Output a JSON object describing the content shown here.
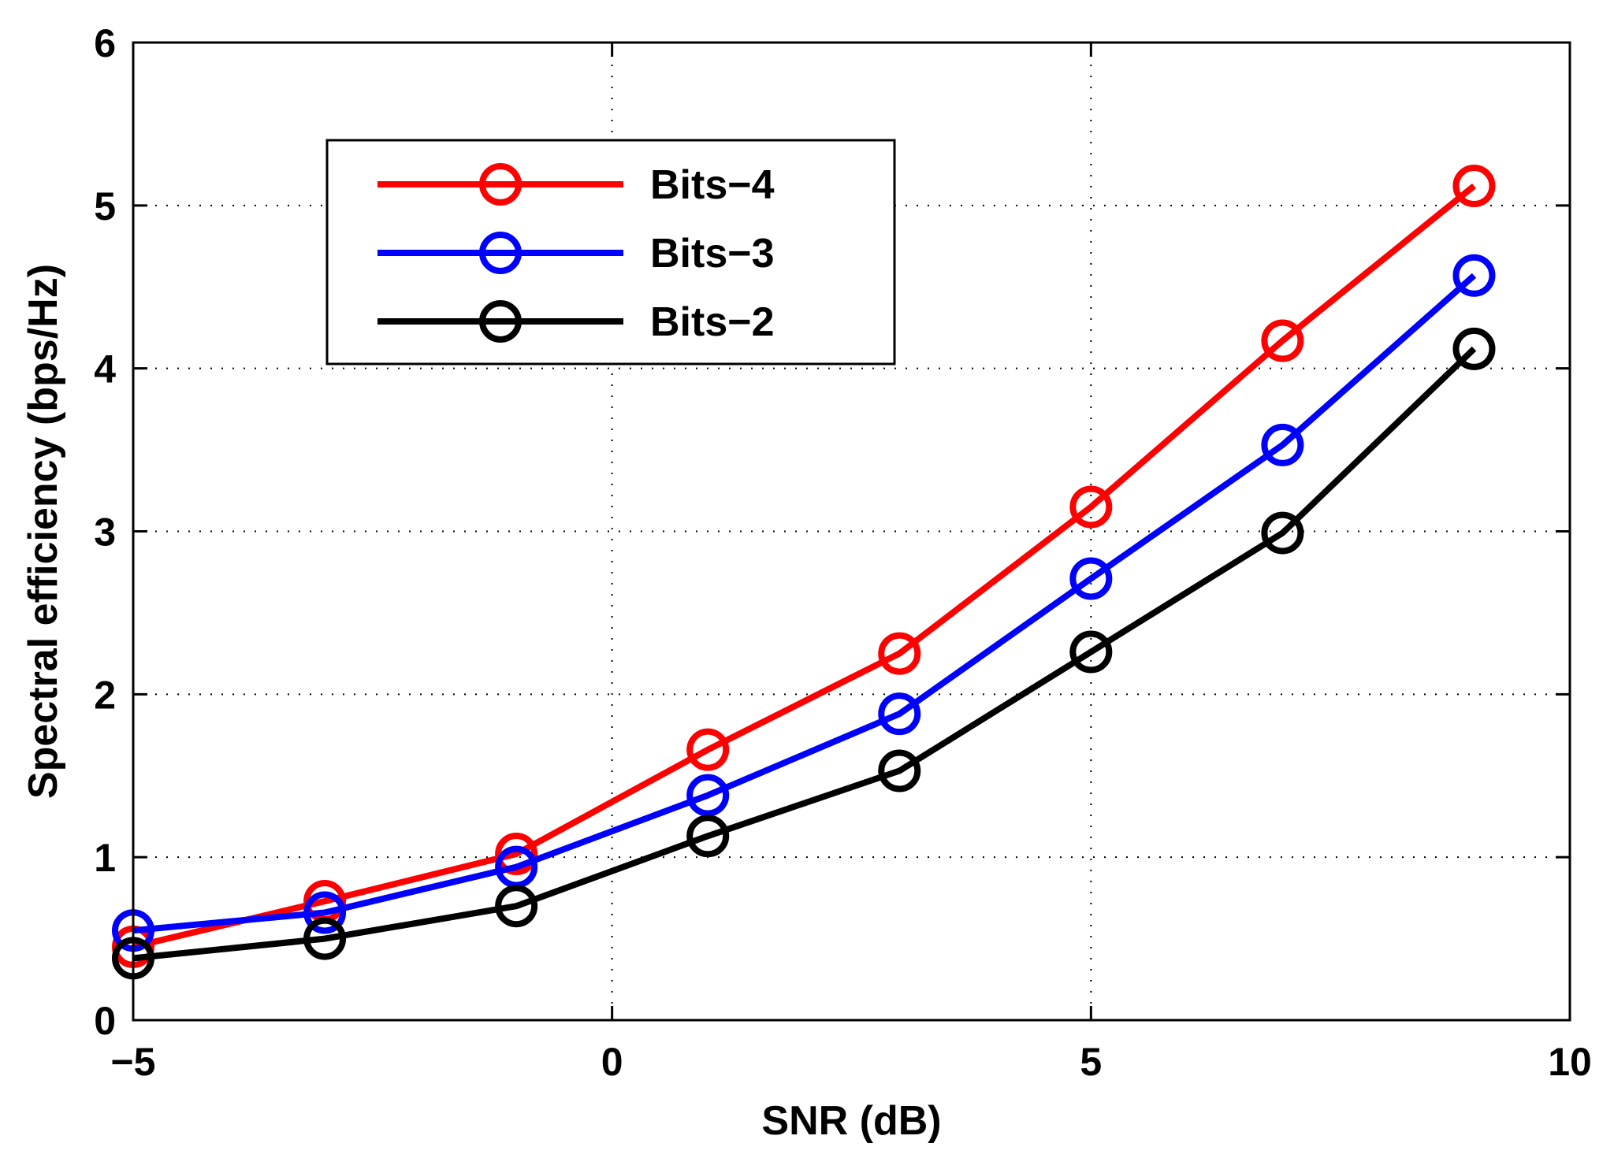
{
  "chart_data": {
    "type": "line",
    "title": "",
    "xlabel": "SNR (dB)",
    "ylabel": "Spectral efficiency (bps/Hz)",
    "xlim": [
      -5,
      10
    ],
    "ylim": [
      0,
      6
    ],
    "xticks": [
      -5,
      0,
      5,
      10
    ],
    "xtick_labels": [
      "−5",
      "0",
      "5",
      "10"
    ],
    "yticks": [
      0,
      1,
      2,
      3,
      4,
      5,
      6
    ],
    "ytick_labels": [
      "0",
      "1",
      "2",
      "3",
      "4",
      "5",
      "6"
    ],
    "grid": true,
    "legend_position": "top-left",
    "x": [
      -5,
      -3,
      -1,
      1,
      3,
      5,
      7,
      9
    ],
    "series": [
      {
        "name": "Bits−4",
        "color": "#ff0000",
        "marker": "circle",
        "values": [
          0.45,
          0.73,
          1.02,
          1.66,
          2.25,
          3.15,
          4.17,
          5.12
        ]
      },
      {
        "name": "Bits−3",
        "color": "#0000ff",
        "marker": "circle",
        "values": [
          0.55,
          0.66,
          0.94,
          1.38,
          1.88,
          2.71,
          3.53,
          4.57
        ]
      },
      {
        "name": "Bits−2",
        "color": "#000000",
        "marker": "circle",
        "values": [
          0.38,
          0.5,
          0.7,
          1.13,
          1.53,
          2.26,
          2.99,
          4.12
        ]
      }
    ]
  }
}
